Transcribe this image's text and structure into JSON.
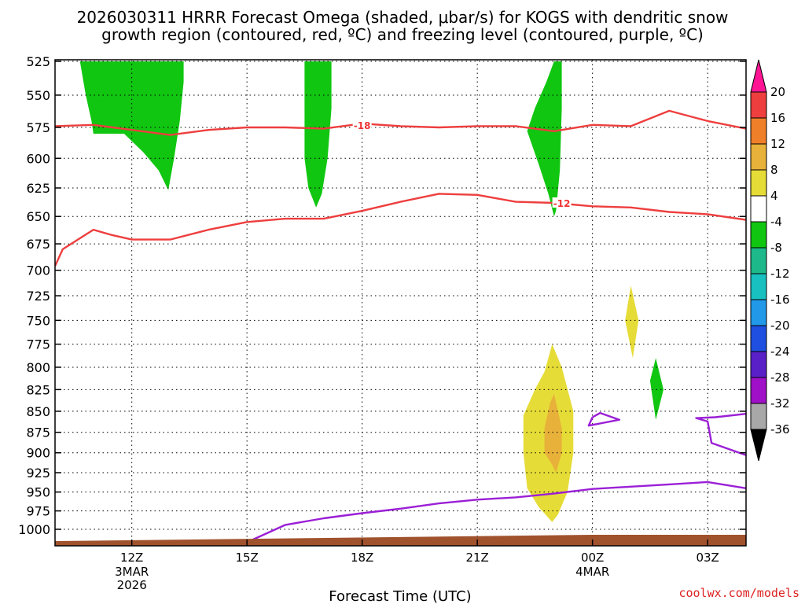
{
  "chart_data": {
    "type": "time-height cross section",
    "title_line1": "2026030311 HRRR Forecast Omega (shaded, μbar/s) for KOGS with dendritic snow",
    "title_line2": "growth region (contoured, red, ºC) and freezing level (contoured, purple, ºC)",
    "xlabel": "Forecast Time (UTC)",
    "ylabel": "",
    "credit": "coolwx.com/models",
    "y_scale": "pressure (inverted, hPa)",
    "y_ticks": [
      525,
      550,
      575,
      600,
      625,
      650,
      675,
      700,
      725,
      750,
      775,
      800,
      825,
      850,
      875,
      900,
      925,
      950,
      975,
      1000
    ],
    "x_range_hours": [
      10.0,
      28.0
    ],
    "x_ticks": [
      {
        "hour": 12,
        "label": "12Z",
        "date": [
          "3MAR",
          "2026"
        ]
      },
      {
        "hour": 15,
        "label": "15Z",
        "date": []
      },
      {
        "hour": 18,
        "label": "18Z",
        "date": []
      },
      {
        "hour": 21,
        "label": "21Z",
        "date": []
      },
      {
        "hour": 24,
        "label": "00Z",
        "date": [
          "4MAR"
        ]
      },
      {
        "hour": 27,
        "label": "03Z",
        "date": []
      }
    ],
    "grid": "dotted",
    "colorbar": {
      "label_values": [
        20,
        16,
        12,
        8,
        4,
        -4,
        -8,
        -12,
        -16,
        -20,
        -24,
        -28,
        -32,
        -36
      ],
      "bins": [
        "#ff1493",
        "#ee3e3e",
        "#f07f2a",
        "#e8b13a",
        "#e6dc37",
        "#ffffff",
        "#11c611",
        "#1eb98a",
        "#19c0c0",
        "#2199e8",
        "#1f4fe0",
        "#5a20c8",
        "#a010c8",
        "#a8a8a8",
        "#000000"
      ]
    },
    "omega_regions": [
      {
        "name": "green",
        "color": "#11c611",
        "points": [
          [
            10.65,
            525
          ],
          [
            12.0,
            525
          ],
          [
            13.35,
            525
          ],
          [
            13.35,
            540
          ],
          [
            13.25,
            570
          ],
          [
            13.1,
            600
          ],
          [
            12.95,
            627
          ],
          [
            12.7,
            610
          ],
          [
            12.3,
            595
          ],
          [
            11.8,
            580
          ],
          [
            11.0,
            580
          ],
          [
            10.95,
            570
          ],
          [
            10.8,
            550
          ]
        ]
      },
      {
        "name": "green",
        "color": "#11c611",
        "points": [
          [
            16.5,
            525
          ],
          [
            17.2,
            525
          ],
          [
            17.2,
            560
          ],
          [
            17.1,
            600
          ],
          [
            16.95,
            630
          ],
          [
            16.8,
            642
          ],
          [
            16.6,
            625
          ],
          [
            16.5,
            600
          ],
          [
            16.5,
            560
          ]
        ]
      },
      {
        "name": "green",
        "color": "#11c611",
        "points": [
          [
            22.3,
            578
          ],
          [
            22.5,
            560
          ],
          [
            22.8,
            540
          ],
          [
            23.0,
            525
          ],
          [
            23.2,
            525
          ],
          [
            23.2,
            560
          ],
          [
            23.15,
            610
          ],
          [
            23.05,
            645
          ],
          [
            23.0,
            650
          ],
          [
            22.85,
            630
          ],
          [
            22.6,
            605
          ]
        ]
      },
      {
        "name": "green",
        "color": "#11c611",
        "points": [
          [
            21.85,
            525
          ],
          [
            21.85,
            525
          ]
        ]
      },
      {
        "name": "green",
        "color": "#11c611",
        "points": [
          [
            21.9,
            580
          ],
          [
            21.9,
            580
          ]
        ]
      },
      {
        "name": "green",
        "color": "#11c611",
        "points": [
          [
            21.95,
            650
          ],
          [
            21.95,
            650
          ]
        ]
      },
      {
        "name": "green",
        "color": "#11c611",
        "points": [
          [
            25.5,
            815
          ],
          [
            25.65,
            790
          ],
          [
            25.85,
            825
          ],
          [
            25.65,
            860
          ]
        ]
      },
      {
        "name": "yellow",
        "color": "#e6dc37",
        "points": [
          [
            24.85,
            750
          ],
          [
            25.0,
            715
          ],
          [
            25.2,
            750
          ],
          [
            25.05,
            790
          ]
        ]
      },
      {
        "name": "yellow",
        "color": "#e6dc37",
        "points": [
          [
            22.2,
            855
          ],
          [
            22.5,
            825
          ],
          [
            22.75,
            805
          ],
          [
            22.95,
            775
          ],
          [
            23.2,
            800
          ],
          [
            23.5,
            850
          ],
          [
            23.5,
            900
          ],
          [
            23.35,
            950
          ],
          [
            23.1,
            980
          ],
          [
            22.95,
            990
          ],
          [
            22.6,
            970
          ],
          [
            22.3,
            945
          ],
          [
            22.2,
            900
          ]
        ]
      },
      {
        "name": "orange",
        "color": "#e8b13a",
        "points": [
          [
            22.75,
            870
          ],
          [
            22.9,
            840
          ],
          [
            23.0,
            830
          ],
          [
            23.2,
            870
          ],
          [
            23.2,
            900
          ],
          [
            23.05,
            925
          ],
          [
            22.95,
            915
          ],
          [
            22.75,
            900
          ]
        ]
      }
    ],
    "contours": [
      {
        "kind": "dendritic",
        "value": -18,
        "label": "-18",
        "label_at": [
          18.0,
          573
        ],
        "color": "#ee3e3e",
        "x": [
          10.0,
          11.0,
          12.0,
          13.0,
          14.0,
          15.0,
          16.0,
          17.0,
          18.0,
          19.0,
          20.0,
          21.0,
          22.0,
          23.0,
          24.0,
          25.0,
          26.0,
          27.0,
          28.0
        ],
        "y": [
          574,
          573,
          577,
          581,
          577,
          575,
          575,
          576,
          572,
          574,
          575,
          574,
          574,
          578,
          573,
          574,
          562,
          570,
          576
        ]
      },
      {
        "kind": "dendritic",
        "value": -12,
        "label": "-12",
        "label_at": [
          23.2,
          638
        ],
        "color": "#ee3e3e",
        "x": [
          10.0,
          10.2,
          11.0,
          11.5,
          12.0,
          13.0,
          14.0,
          15.0,
          16.0,
          17.0,
          18.0,
          19.0,
          20.0,
          21.0,
          22.0,
          23.0,
          24.0,
          25.0,
          26.0,
          27.0,
          28.0
        ],
        "y": [
          696,
          680,
          662,
          667,
          671,
          671,
          662,
          655,
          652,
          652,
          645,
          637,
          630,
          631,
          637,
          638,
          641,
          642,
          646,
          648,
          653
        ]
      },
      {
        "kind": "freezing",
        "value": 0,
        "color": "#9b1fd6",
        "x": [
          15.0,
          16.0,
          17.0,
          18.0,
          19.0,
          20.0,
          21.0,
          22.0,
          23.0,
          24.0,
          25.0,
          26.0,
          27.0,
          28.0
        ],
        "y": [
          1018,
          994,
          985,
          978,
          972,
          965,
          960,
          957,
          952,
          946,
          943,
          940,
          937,
          945
        ]
      },
      {
        "kind": "freezing",
        "value": 0,
        "color": "#9b1fd6",
        "x": [
          24.0,
          24.2,
          24.7,
          23.9,
          24.0
        ],
        "y": [
          857,
          852,
          860,
          867,
          857
        ]
      },
      {
        "kind": "freezing",
        "value": 0,
        "color": "#9b1fd6",
        "x": [
          28.0,
          27.2,
          26.7,
          27.0,
          27.1,
          28.0
        ],
        "y": [
          853,
          857,
          858,
          862,
          888,
          903
        ]
      }
    ]
  }
}
